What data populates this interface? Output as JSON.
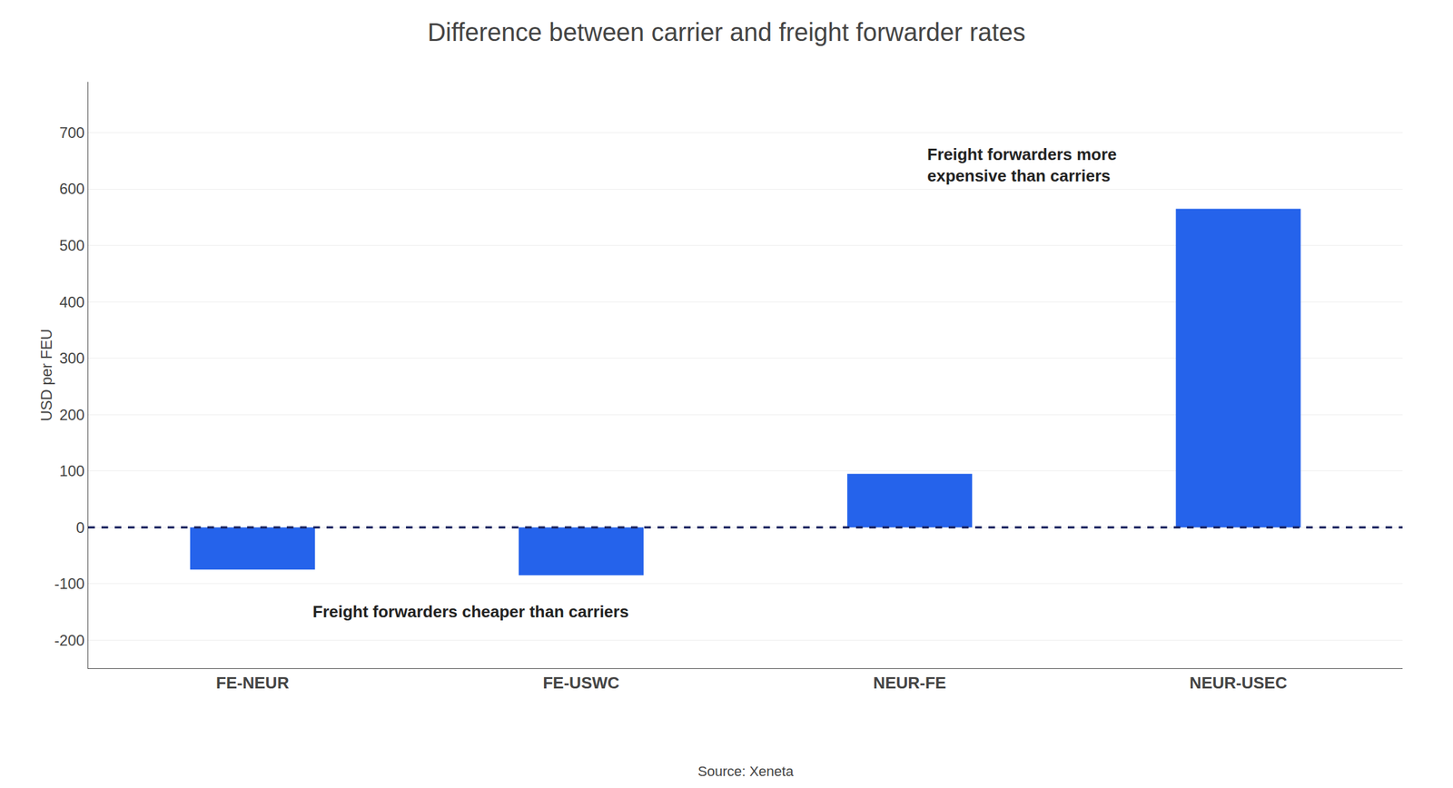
{
  "chart_data": {
    "type": "bar",
    "title": "Difference between carrier and freight forwarder rates",
    "categories": [
      "FE-NEUR",
      "FE-USWC",
      "NEUR-FE",
      "NEUR-USEC"
    ],
    "values": [
      -75,
      -85,
      95,
      565
    ],
    "color": "#2563EB",
    "ylabel": "USD per FEU",
    "ylim": [
      -250,
      790
    ],
    "yticks": [
      -200,
      -100,
      0,
      100,
      200,
      300,
      400,
      500,
      600,
      700
    ],
    "grid": true,
    "reference_lines": [
      {
        "y": 0,
        "color": "#1a2460",
        "line_style": "dashed"
      }
    ],
    "annotations": [
      [
        "Freight forwarders more",
        "expensive than carriers"
      ],
      [
        "Freight forwarders cheaper than carriers"
      ]
    ],
    "source": "Source: Xeneta"
  }
}
